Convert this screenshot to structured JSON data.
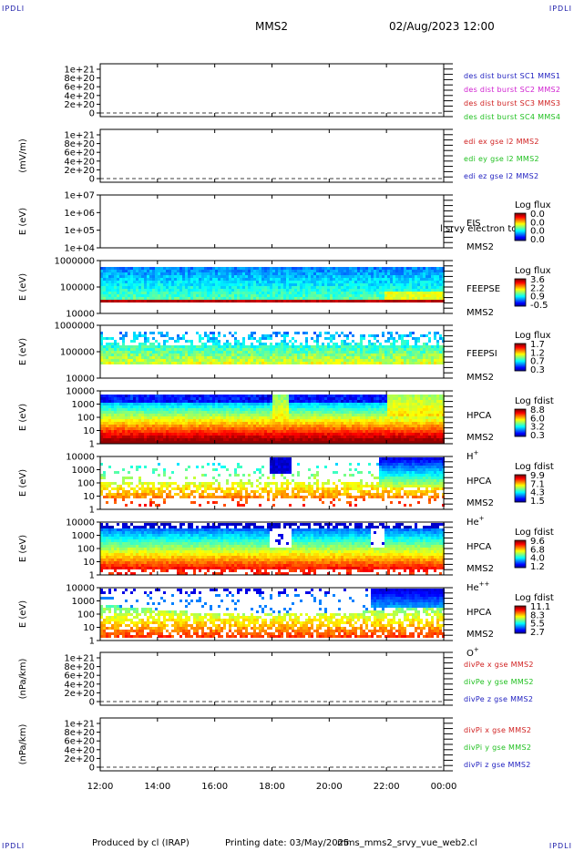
{
  "corners": {
    "tl": "IPDLI",
    "tr": "IPDLI",
    "bl": "IPDLI",
    "br": "IPDLI"
  },
  "header": {
    "mission": "MMS2",
    "datetime": "02/Aug/2023 12:00"
  },
  "footer": {
    "produced": "Produced by  cl (IRAP)",
    "printing": "Printing date: 03/May/2025",
    "script": "mms_mms2_srvy_vue_web2.cl"
  },
  "chart_data": {
    "type": "multi-panel time series / spectrograms",
    "x_ticks": [
      "12:00",
      "14:00",
      "16:00",
      "18:00",
      "20:00",
      "22:00",
      "00:00"
    ],
    "panels": [
      {
        "id": "p1",
        "type": "line",
        "ylabel": "",
        "yticks": [
          "1e+21",
          "8e+20",
          "6e+20",
          "4e+20",
          "2e+20",
          "0"
        ],
        "legend": [
          {
            "text": "des dist burst SC1 MMS1",
            "color": "#2020c0"
          },
          {
            "text": "des dist burst SC2 MMS2",
            "color": "#d020d0"
          },
          {
            "text": "des dist burst SC3 MMS3",
            "color": "#d02020"
          },
          {
            "text": "des dist burst SC4 MMS4",
            "color": "#20c020"
          }
        ]
      },
      {
        "id": "p2",
        "type": "line",
        "ylabel": "(mV/m)",
        "yticks": [
          "1e+21",
          "8e+20",
          "6e+20",
          "4e+20",
          "2e+20",
          "0"
        ],
        "legend": [
          {
            "text": "edi ex gse l2 MMS2",
            "color": "#d02020"
          },
          {
            "text": "edi ey gse l2 MMS2",
            "color": "#20c020"
          },
          {
            "text": "edi ez gse l2 MMS2",
            "color": "#2020c0"
          }
        ]
      },
      {
        "id": "p3",
        "type": "heatmap",
        "ylabel": "E (eV)",
        "yticks": [
          "1e+07",
          "1e+06",
          "1e+05",
          "1e+04"
        ],
        "side": [
          "EIS",
          "MMS2"
        ],
        "overlay": "l srvy electron to",
        "cbtitle": "Log flux",
        "cbvals": [
          "0.0",
          "0.0",
          "0.0",
          "0.0"
        ]
      },
      {
        "id": "p4",
        "type": "heatmap",
        "ylabel": "E (eV)",
        "yticks": [
          "1000000",
          "100000",
          "10000"
        ],
        "side": [
          "FEEPSE",
          "MMS2"
        ],
        "cbtitle": "Log flux",
        "cbvals": [
          "3.6",
          "2.2",
          "0.9",
          "-0.5"
        ]
      },
      {
        "id": "p5",
        "type": "heatmap",
        "ylabel": "E (eV)",
        "yticks": [
          "1000000",
          "100000",
          "10000"
        ],
        "side": [
          "FEEPSI",
          "MMS2"
        ],
        "cbtitle": "Log flux",
        "cbvals": [
          "1.7",
          "1.2",
          "0.7",
          "0.3"
        ]
      },
      {
        "id": "p6",
        "type": "heatmap",
        "ylabel": "E (eV)",
        "yticks": [
          "10000",
          "1000",
          "100",
          "10",
          "1"
        ],
        "side": [
          "HPCA",
          "MMS2",
          "H+"
        ],
        "cbtitle": "Log fdist",
        "cbvals": [
          "8.8",
          "6.0",
          "3.2",
          "0.3"
        ]
      },
      {
        "id": "p7",
        "type": "heatmap",
        "ylabel": "E (eV)",
        "yticks": [
          "10000",
          "1000",
          "100",
          "10",
          "1"
        ],
        "side": [
          "HPCA",
          "MMS2",
          "He+"
        ],
        "cbtitle": "Log fdist",
        "cbvals": [
          "9.9",
          "7.1",
          "4.3",
          "1.5"
        ]
      },
      {
        "id": "p8",
        "type": "heatmap",
        "ylabel": "E (eV)",
        "yticks": [
          "10000",
          "1000",
          "100",
          "10",
          "1"
        ],
        "side": [
          "HPCA",
          "MMS2",
          "He++"
        ],
        "cbtitle": "Log fdist",
        "cbvals": [
          "9.6",
          "6.8",
          "4.0",
          "1.2"
        ]
      },
      {
        "id": "p9",
        "type": "heatmap",
        "ylabel": "E (eV)",
        "yticks": [
          "10000",
          "1000",
          "100",
          "10",
          "1"
        ],
        "side": [
          "HPCA",
          "MMS2",
          "O+"
        ],
        "cbtitle": "Log fdist",
        "cbvals": [
          "11.1",
          "8.3",
          "5.5",
          "2.7"
        ]
      },
      {
        "id": "p10",
        "type": "line",
        "ylabel": "(nPa/km)",
        "yticks": [
          "1e+21",
          "8e+20",
          "6e+20",
          "4e+20",
          "2e+20",
          "0"
        ],
        "legend": [
          {
            "text": "divPe x gse MMS2",
            "color": "#d02020"
          },
          {
            "text": "divPe y gse MMS2",
            "color": "#20c020"
          },
          {
            "text": "divPe z gse MMS2",
            "color": "#2020c0"
          }
        ]
      },
      {
        "id": "p11",
        "type": "line",
        "ylabel": "(nPa/km)",
        "yticks": [
          "1e+21",
          "8e+20",
          "6e+20",
          "4e+20",
          "2e+20",
          "0"
        ],
        "legend": [
          {
            "text": "divPi x gse MMS2",
            "color": "#d02020"
          },
          {
            "text": "divPi y gse MMS2",
            "color": "#20c020"
          },
          {
            "text": "divPi z gse MMS2",
            "color": "#2020c0"
          }
        ]
      }
    ]
  }
}
